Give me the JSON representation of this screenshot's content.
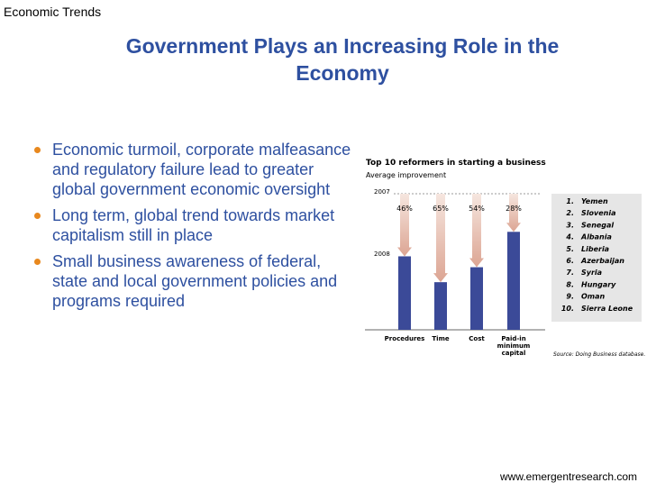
{
  "header": "Economic Trends",
  "title": "Government Plays an Increasing Role in the Economy",
  "bullets": [
    "Economic turmoil, corporate malfeasance and regulatory failure lead to greater global government economic oversight",
    "Long term, global trend towards market capitalism still in place",
    "Small business awareness of federal, state and local government policies and programs required"
  ],
  "footer": "www.emergentresearch.com",
  "chart_data": {
    "type": "bar",
    "title": "Top 10 reformers in starting a business",
    "subtitle": "Average improvement",
    "period_labels": [
      "2007",
      "2008"
    ],
    "categories": [
      "Procedures",
      "Time",
      "Cost",
      "Paid-in minimum capital"
    ],
    "values": [
      46,
      65,
      54,
      28
    ],
    "value_labels": [
      "46%",
      "65%",
      "54%",
      "28%"
    ],
    "ylim": [
      0,
      100
    ],
    "color": "#3b4a98",
    "ranking": [
      "1.",
      "Yemen",
      "2.",
      "Slovenia",
      "3.",
      "Senegal",
      "4.",
      "Albania",
      "5.",
      "Liberia",
      "6.",
      "Azerbaijan",
      "7.",
      "Syria",
      "8.",
      "Hungary",
      "9.",
      "Oman",
      "10.",
      "Sierra Leone"
    ],
    "source": "Source: Doing Business database."
  }
}
